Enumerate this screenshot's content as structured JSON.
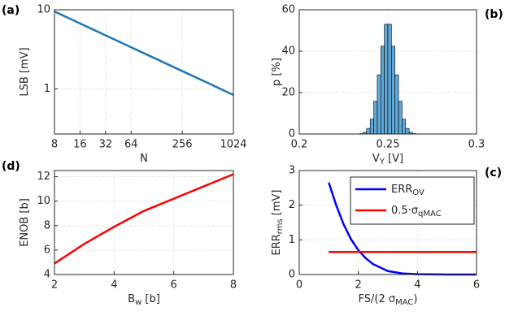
{
  "chart_data": [
    {
      "type": "line",
      "panel_label": "(a)",
      "xlabel": [
        {
          "text": "N"
        }
      ],
      "ylabel": [
        {
          "text": "LSB [mV]"
        }
      ],
      "xscale": "log",
      "yscale": "log",
      "grid": true,
      "xlim": [
        8,
        1024
      ],
      "ylim": [
        0.27,
        10
      ],
      "xticks": [
        8,
        16,
        32,
        64,
        256,
        1024
      ],
      "yticks": [
        1,
        10
      ],
      "series": [
        {
          "color": "#1f77b4",
          "x": [
            8,
            16,
            32,
            64,
            128,
            256,
            512,
            1024
          ],
          "values": [
            9.5,
            6.72,
            4.75,
            3.36,
            2.38,
            1.68,
            1.19,
            0.84
          ]
        }
      ]
    },
    {
      "type": "histogram",
      "panel_label": "(b)",
      "xlabel": [
        {
          "text": "V"
        },
        {
          "text": "Y",
          "sub": true
        },
        {
          "text": " [V]"
        }
      ],
      "ylabel": [
        {
          "text": "p [%]"
        }
      ],
      "grid": true,
      "color": "#5fa7d6",
      "edgecolor": "#000000",
      "xlim": [
        0.2,
        0.3
      ],
      "ylim": [
        0,
        60
      ],
      "xticks": [
        0.2,
        0.25,
        0.3
      ],
      "yticks": [
        0,
        20,
        40,
        60
      ],
      "bins": [
        0.23,
        0.232,
        0.234,
        0.236,
        0.238,
        0.24,
        0.242,
        0.244,
        0.246,
        0.248,
        0.25,
        0.252,
        0.254,
        0.256,
        0.258,
        0.26,
        0.262,
        0.264,
        0.266,
        0.268,
        0.27
      ],
      "values": [
        0.01,
        0.04,
        0.2,
        0.8,
        2.7,
        7.2,
        15.8,
        28.6,
        42.4,
        53,
        53,
        42.4,
        28.6,
        15.8,
        7.2,
        2.7,
        0.8,
        0.2,
        0.04,
        0.01
      ]
    },
    {
      "type": "line",
      "panel_label": "(c)",
      "xlabel": [
        {
          "text": "FS/(2 σ"
        },
        {
          "text": "MAC",
          "sub": true
        },
        {
          "text": ")"
        }
      ],
      "ylabel": [
        {
          "text": "ERR"
        },
        {
          "text": "rms",
          "sub": true
        },
        {
          "text": " [mV]"
        }
      ],
      "grid": true,
      "legend": "upper right",
      "xlim": [
        0,
        6
      ],
      "ylim": [
        0,
        3
      ],
      "xticks": [
        0,
        2,
        4,
        6
      ],
      "yticks": [
        0,
        1,
        2,
        3
      ],
      "series": [
        {
          "name": [
            {
              "text": "ERR"
            },
            {
              "text": "OV",
              "sub": true
            }
          ],
          "color": "#0000ff",
          "x": [
            1,
            1.25,
            1.5,
            1.75,
            2,
            2.25,
            2.5,
            3,
            3.5,
            4,
            5,
            6
          ],
          "values": [
            2.65,
            2.0,
            1.45,
            1.02,
            0.7,
            0.47,
            0.3,
            0.1,
            0.03,
            0.01,
            0,
            0
          ]
        },
        {
          "name": [
            {
              "text": "0.5·σ"
            },
            {
              "text": "qMAC",
              "sub": true
            }
          ],
          "color": "#ff0000",
          "x": [
            1,
            6
          ],
          "values": [
            0.65,
            0.65
          ]
        }
      ]
    },
    {
      "type": "line",
      "panel_label": "(d)",
      "xlabel": [
        {
          "text": "B"
        },
        {
          "text": "w",
          "sub": true
        },
        {
          "text": " [b]"
        }
      ],
      "ylabel": [
        {
          "text": "ENOB [b]"
        }
      ],
      "grid": true,
      "xlim": [
        2,
        8
      ],
      "ylim": [
        4,
        12.5
      ],
      "xticks": [
        2,
        4,
        6,
        8
      ],
      "yticks": [
        4,
        6,
        8,
        10,
        12
      ],
      "series": [
        {
          "color": "#ff0000",
          "x": [
            2,
            3,
            4,
            5,
            6,
            7,
            8
          ],
          "values": [
            4.9,
            6.5,
            7.9,
            9.2,
            10.2,
            11.2,
            12.2
          ]
        }
      ]
    }
  ]
}
